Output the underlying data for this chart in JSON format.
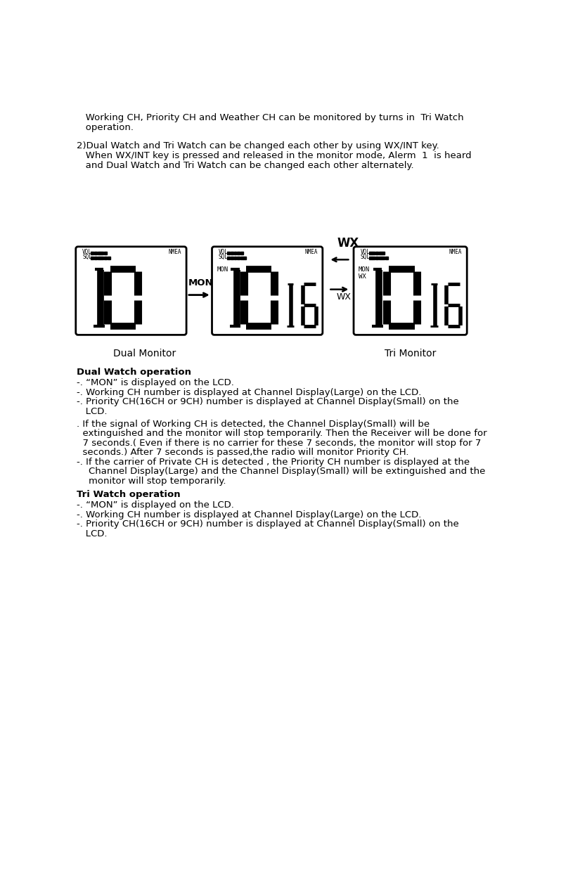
{
  "bg_color": "#ffffff",
  "figsize": [
    8.25,
    12.49
  ],
  "dpi": 100,
  "para1_line1": "   Working CH, Priority CH and Weather CH can be monitored by turns in  Tri Watch",
  "para1_line2": "   operation.",
  "para2_line1": "2)Dual Watch and Tri Watch can be changed each other by using WX/INT key.",
  "para2_line2": "   When WX/INT key is pressed and released in the monitor mode, Alerm  1  is heard",
  "para2_line3": "   and Dual Watch and Tri Watch can be changed each other alternately.",
  "label_dual_monitor": "Dual Monitor",
  "label_tri_monitor": "Tri Monitor",
  "dual_watch_title": "Dual Watch operation",
  "dual_watch_b1": "-. “MON” is displayed on the LCD.",
  "dual_watch_b2": "-. Working CH number is displayed at Channel Display(Large) on the LCD.",
  "dual_watch_b3": "-. Priority CH(16CH or 9CH) number is displayed at Channel Display(Small) on the",
  "dual_watch_b3b": "   LCD.",
  "dual_watch_b4": ". If the signal of Working CH is detected, the Channel Display(Small) will be",
  "dual_watch_b5": "  extinguished and the monitor will stop temporarily. Then the Receiver will be done for",
  "dual_watch_b6": "  7 seconds.( Even if there is no carrier for these 7 seconds, the monitor will stop for 7",
  "dual_watch_b7": "  seconds.) After 7 seconds is passed,the radio will monitor Priority CH.",
  "dual_watch_b8": "-. If the carrier of Private CH is detected , the Priority CH number is displayed at the",
  "dual_watch_b9": "    Channel Display(Large) and the Channel Display(Small) will be extinguished and the",
  "dual_watch_b10": "    monitor will stop temporarily.",
  "tri_watch_title": "Tri Watch operation",
  "tri_watch_b1": "-. “MON” is displayed on the LCD.",
  "tri_watch_b2": "-. Working CH number is displayed at Channel Display(Large) on the LCD.",
  "tri_watch_b3": "-. Priority CH(16CH or 9CH) number is displayed at Channel Display(Small) on the",
  "tri_watch_b3b": "   LCD."
}
